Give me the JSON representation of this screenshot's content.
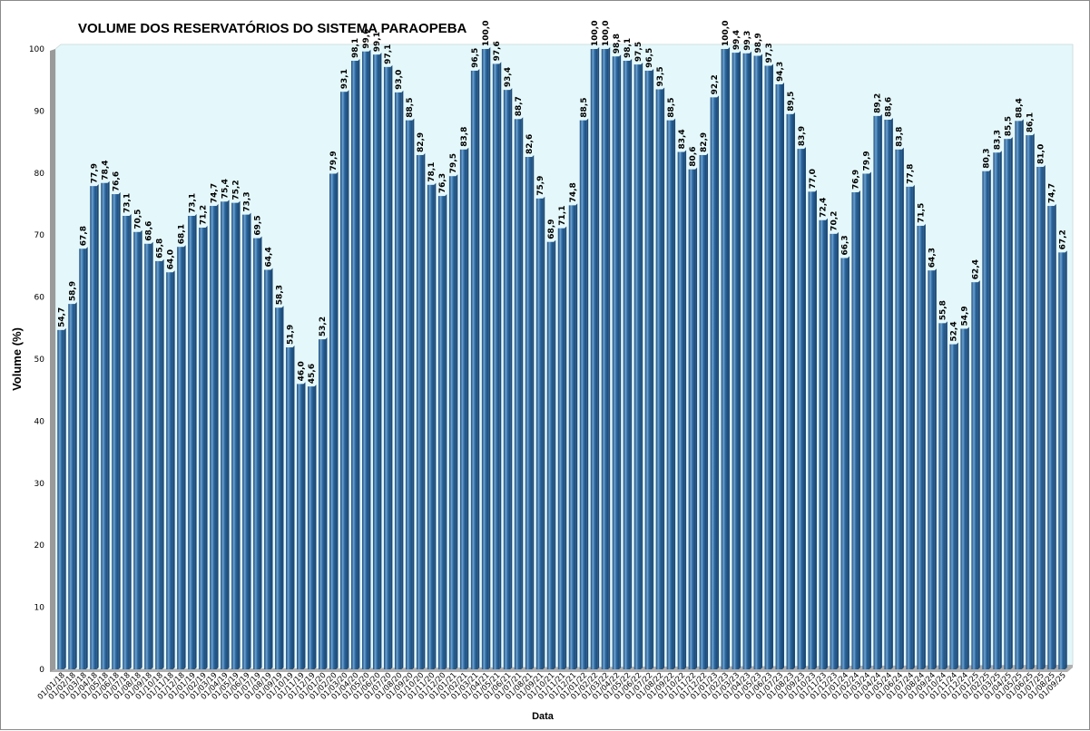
{
  "chart_data": {
    "type": "bar",
    "title": "VOLUME DOS RESERVATÓRIOS DO SISTEMA PARAOPEBA",
    "xlabel": "Data",
    "ylabel": "Volume (%)",
    "ylim": [
      0,
      100
    ],
    "yticks": [
      0,
      10,
      20,
      30,
      40,
      50,
      60,
      70,
      80,
      90,
      100
    ],
    "grid": false,
    "legend": "none",
    "colors": {
      "bar": "#2e6aa1",
      "bar_highlight": "#6ea3d2",
      "bar_shadow": "#1c4a78",
      "plot_bg": "#e4f8fb",
      "floor": "#b0b0b0"
    },
    "categories": [
      "01/01/18",
      "01/02/18",
      "01/03/18",
      "01/04/18",
      "01/05/18",
      "01/06/18",
      "01/07/18",
      "01/08/18",
      "01/09/18",
      "01/10/18",
      "01/11/18",
      "01/12/18",
      "01/01/19",
      "01/02/19",
      "01/03/19",
      "01/04/19",
      "01/05/19",
      "01/06/19",
      "01/07/19",
      "01/08/19",
      "01/09/19",
      "01/10/19",
      "01/11/19",
      "01/12/19",
      "01/01/20",
      "01/02/20",
      "01/03/20",
      "01/04/20",
      "01/05/20",
      "01/06/20",
      "01/07/20",
      "01/08/20",
      "01/09/20",
      "01/10/20",
      "01/11/20",
      "01/12/20",
      "01/01/21",
      "01/02/21",
      "01/03/21",
      "01/04/21",
      "01/05/21",
      "01/06/21",
      "01/07/21",
      "01/08/21",
      "01/09/21",
      "01/10/21",
      "01/11/21",
      "01/12/21",
      "01/01/22",
      "01/02/22",
      "01/03/22",
      "01/04/22",
      "01/05/22",
      "01/06/22",
      "01/07/22",
      "01/08/22",
      "01/09/22",
      "01/10/22",
      "01/11/22",
      "01/12/22",
      "01/01/23",
      "01/02/23",
      "01/03/23",
      "01/04/23",
      "01/05/23",
      "01/06/23",
      "01/07/23",
      "01/08/23",
      "01/09/23",
      "01/10/23",
      "01/11/23",
      "01/12/23",
      "01/01/24",
      "01/02/24",
      "01/03/24",
      "01/04/24",
      "01/05/24",
      "01/06/24",
      "01/07/24",
      "01/08/24",
      "01/09/24",
      "01/10/24",
      "01/11/24",
      "01/12/24",
      "01/01/25",
      "01/02/25",
      "01/03/25",
      "01/04/25",
      "01/05/25",
      "01/06/25",
      "01/07/25",
      "01/08/25",
      "01/09/25"
    ],
    "values": [
      54.7,
      58.9,
      67.8,
      77.9,
      78.4,
      76.6,
      73.1,
      70.5,
      68.6,
      65.8,
      64.0,
      68.1,
      73.1,
      71.2,
      74.7,
      75.4,
      75.2,
      73.3,
      69.5,
      64.4,
      58.3,
      51.9,
      46.0,
      45.6,
      53.2,
      79.9,
      93.1,
      98.1,
      99.6,
      99.1,
      97.1,
      93.0,
      88.5,
      82.9,
      78.1,
      76.3,
      79.5,
      83.8,
      96.5,
      100.0,
      97.6,
      93.4,
      88.7,
      82.6,
      75.9,
      68.9,
      71.1,
      74.8,
      88.5,
      100.0,
      100.0,
      98.8,
      98.1,
      97.5,
      96.5,
      93.5,
      88.5,
      83.4,
      80.6,
      82.9,
      92.2,
      100.0,
      99.4,
      99.3,
      98.9,
      97.3,
      94.3,
      89.5,
      83.9,
      77.0,
      72.4,
      70.2,
      66.3,
      76.9,
      79.9,
      89.2,
      88.6,
      83.8,
      77.8,
      71.5,
      64.3,
      55.8,
      52.4,
      54.9,
      62.4,
      80.3,
      83.3,
      85.5,
      88.4,
      86.1,
      81.0,
      74.7,
      67.2
    ],
    "data_labels": [
      "54,7",
      "58,9",
      "67,8",
      "77,9",
      "78,4",
      "76,6",
      "73,1",
      "70,5",
      "68,6",
      "65,8",
      "64,0",
      "68,1",
      "73,1",
      "71,2",
      "74,7",
      "75,4",
      "75,2",
      "73,3",
      "69,5",
      "64,4",
      "58,3",
      "51,9",
      "46,0",
      "45,6",
      "53,2",
      "79,9",
      "93,1",
      "98,1",
      "99,6",
      "99,1",
      "97,1",
      "93,0",
      "88,5",
      "82,9",
      "78,1",
      "76,3",
      "79,5",
      "83,8",
      "96,5",
      "100,0",
      "97,6",
      "93,4",
      "88,7",
      "82,6",
      "75,9",
      "68,9",
      "71,1",
      "74,8",
      "88,5",
      "100,0",
      "100,0",
      "98,8",
      "98,1",
      "97,5",
      "96,5",
      "93,5",
      "88,5",
      "83,4",
      "80,6",
      "82,9",
      "92,2",
      "100,0",
      "99,4",
      "99,3",
      "98,9",
      "97,3",
      "94,3",
      "89,5",
      "83,9",
      "77,0",
      "72,4",
      "70,2",
      "66,3",
      "76,9",
      "79,9",
      "89,2",
      "88,6",
      "83,8",
      "77,8",
      "71,5",
      "64,3",
      "55,8",
      "52,4",
      "54,9",
      "62,4",
      "80,3",
      "83,3",
      "85,5",
      "88,4",
      "86,1",
      "81,0",
      "74,7",
      "67,2"
    ]
  }
}
